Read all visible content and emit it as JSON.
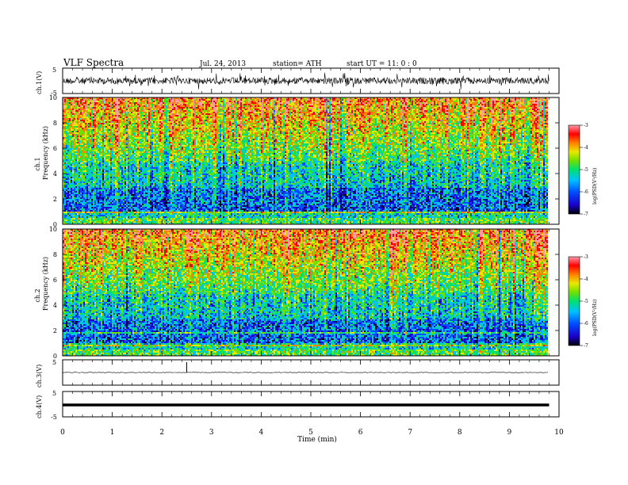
{
  "header": {
    "title": "VLF Spectra",
    "date": "Jul. 24, 2013",
    "station": "station= ATH",
    "start": "start UT = 11: 0 : 0"
  },
  "chart_data": [
    {
      "type": "line",
      "name": "ch1-waveform",
      "ylabel": "ch.1(V)",
      "ylim": [
        -5,
        5
      ],
      "yticks": [
        "5",
        "-5"
      ],
      "description_of_signal": "dense noisy waveform with amplitude about ±1.5 V"
    },
    {
      "type": "heatmap",
      "name": "ch1-spectrogram",
      "ylabel": "ch.1\nFrequency (kHz)",
      "ylim": [
        0,
        10
      ],
      "yticks": [
        "0",
        "2",
        "4",
        "6",
        "8",
        "10"
      ],
      "colorbar": {
        "label": "log(PSD(V²/Hz)",
        "range": [
          -7,
          -3
        ],
        "ticks": [
          "-3",
          "-4",
          "-5",
          "-6",
          "-7"
        ]
      }
    },
    {
      "type": "heatmap",
      "name": "ch2-spectrogram",
      "ylabel": "ch.2\nFrequency (kHz)",
      "ylim": [
        0,
        10
      ],
      "yticks": [
        "0",
        "2",
        "4",
        "6",
        "8",
        "10"
      ],
      "colorbar": {
        "label": "log(PSD(V²/Hz)",
        "range": [
          -7,
          -3
        ],
        "ticks": [
          "-3",
          "-4",
          "-5",
          "-6",
          "-7"
        ]
      }
    },
    {
      "type": "line",
      "name": "ch3-waveform",
      "ylabel": "ch.3(V)",
      "ylim": [
        -5,
        5
      ],
      "yticks": [
        "5"
      ],
      "spike_at_min": 2.5
    },
    {
      "type": "line",
      "name": "ch4-waveform",
      "ylabel": "ch.4(V)",
      "ylim": [
        -5,
        5
      ],
      "yticks": [
        "5",
        "-5"
      ]
    }
  ],
  "x_axis": {
    "label": "Time (min)",
    "range": [
      0,
      10
    ],
    "data_end": 9.8,
    "ticks": [
      "0",
      "1",
      "2",
      "3",
      "4",
      "5",
      "6",
      "7",
      "8",
      "9",
      "10"
    ]
  },
  "colors": {
    "colormap": [
      "#000000",
      "#1a00c8",
      "#0050ff",
      "#00c0ff",
      "#00e070",
      "#70e000",
      "#e8e800",
      "#ff8000",
      "#ff0000",
      "#ff9aa8"
    ]
  }
}
